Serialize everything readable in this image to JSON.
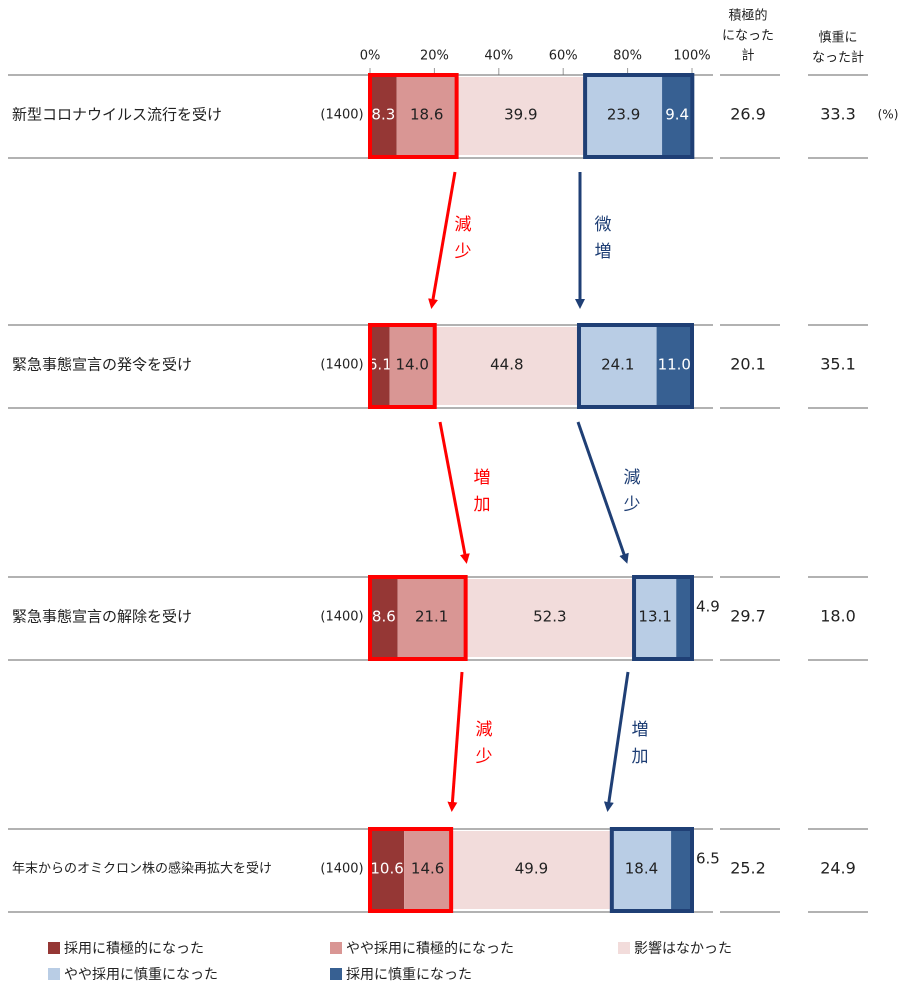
{
  "chart_data": {
    "type": "bar",
    "stacked": true,
    "orientation": "horizontal",
    "axis_ticks": [
      "0%",
      "20%",
      "40%",
      "60%",
      "80%",
      "100%"
    ],
    "xlim": [
      0,
      100
    ],
    "header_positive": "積極的\nになった\n計",
    "header_negative": "慎重に\nなった計",
    "unit_label": "(%)",
    "categories": [
      "新型コロナウイルス流行を受け",
      "緊急事態宣言の発令を受け",
      "緊急事態宣言の解除を受け",
      "年末からのオミクロン株の感染再拡大を受け"
    ],
    "n_labels": [
      "(1400)",
      "(1400)",
      "(1400)",
      "(1400)"
    ],
    "series": [
      {
        "name": "採用に積極的になった",
        "color": "#953735",
        "text_color": "#ffffff",
        "values": [
          8.3,
          6.1,
          8.6,
          10.6
        ]
      },
      {
        "name": "やや採用に積極的になった",
        "color": "#d99694",
        "text_color": "#222222",
        "values": [
          18.6,
          14.0,
          21.1,
          14.6
        ]
      },
      {
        "name": "影響はなかった",
        "color": "#f2dcdb",
        "text_color": "#222222",
        "values": [
          39.9,
          44.8,
          52.3,
          49.9
        ]
      },
      {
        "name": "やや採用に慎重になった",
        "color": "#b9cde5",
        "text_color": "#222222",
        "values": [
          23.9,
          24.1,
          13.1,
          18.4
        ]
      },
      {
        "name": "採用に慎重になった",
        "color": "#376092",
        "text_color": "#ffffff",
        "values": [
          9.4,
          11.0,
          4.9,
          6.5
        ]
      }
    ],
    "positive_total": [
      "26.9",
      "20.1",
      "29.7",
      "25.2"
    ],
    "negative_total": [
      "33.3",
      "35.1",
      "18.0",
      "24.9"
    ],
    "arrows": [
      {
        "positive_label": "減\n少",
        "negative_label": "微\n増"
      },
      {
        "positive_label": "増\n加",
        "negative_label": "減\n少"
      },
      {
        "positive_label": "減\n少",
        "negative_label": "増\n加"
      }
    ],
    "highlight_colors": {
      "positive": "#ff0000",
      "negative": "#1f3f75"
    }
  }
}
